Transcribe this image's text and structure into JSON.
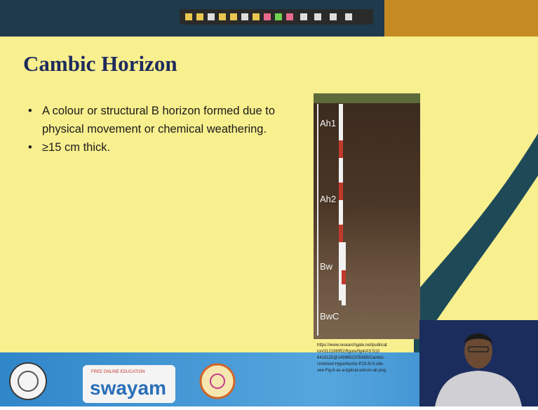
{
  "slide": {
    "title": "Cambic Horizon",
    "bullets": [
      [
        "A colour or structural B horizon formed due to",
        "physical movement or chemical weathering."
      ],
      [
        "≥15 cm thick."
      ]
    ],
    "figure": {
      "labels": [
        "Ah1",
        "Ah2",
        "Bw",
        "BwC"
      ],
      "source": [
        "https://www.researchgate.net/publicat",
        "ion/312198952/figure/fig4/AS:510",
        "6418125@1498652105438/Cambic-",
        "Umbrisol-Hyperhumic-P23-N-0-site-",
        "see-Fig-6-as-a-typical-soil-on-an.png"
      ]
    }
  },
  "footer": {
    "swayam_tagline": "FREE ONLINE EDUCATION",
    "swayam": "swayam"
  }
}
